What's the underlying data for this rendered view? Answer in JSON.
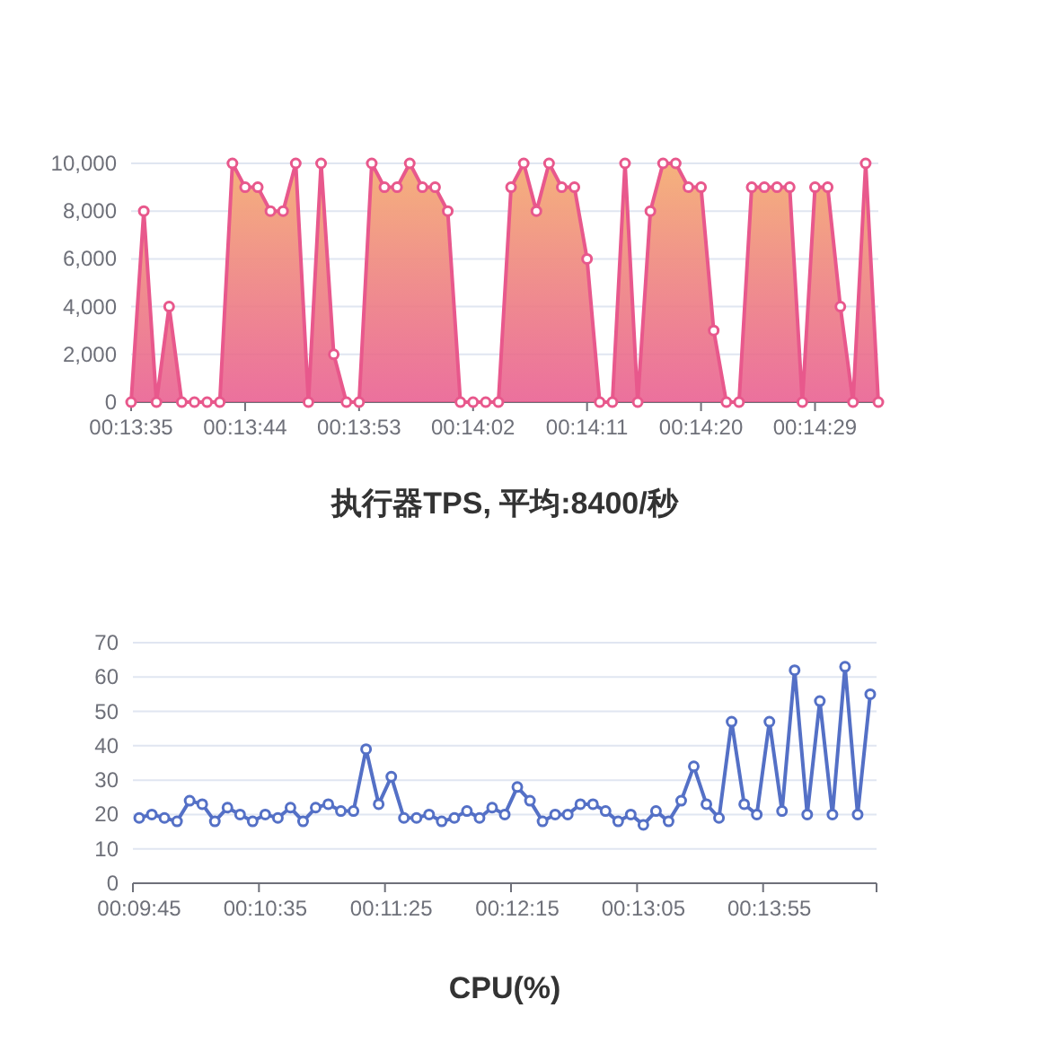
{
  "chart_data": [
    {
      "type": "area",
      "title": "执行器TPS, 平均:8400/秒",
      "categories": [
        "00:13:35",
        null,
        null,
        null,
        null,
        null,
        null,
        null,
        null,
        "00:13:44",
        null,
        null,
        null,
        null,
        null,
        null,
        null,
        null,
        "00:13:53",
        null,
        null,
        null,
        null,
        null,
        null,
        null,
        null,
        "00:14:02",
        null,
        null,
        null,
        null,
        null,
        null,
        null,
        null,
        "00:14:11",
        null,
        null,
        null,
        null,
        null,
        null,
        null,
        null,
        "00:14:20",
        null,
        null,
        null,
        null,
        null,
        null,
        null,
        null,
        "00:14:29",
        null,
        null,
        null,
        null,
        null
      ],
      "series": [
        {
          "color": "#e8588c",
          "values": [
            0,
            8000,
            0,
            4000,
            0,
            0,
            0,
            0,
            10000,
            9000,
            9000,
            8000,
            8000,
            10000,
            0,
            10000,
            2000,
            0,
            0,
            10000,
            9000,
            9000,
            10000,
            9000,
            9000,
            8000,
            0,
            0,
            0,
            0,
            9000,
            10000,
            8000,
            10000,
            9000,
            9000,
            6000,
            0,
            0,
            10000,
            0,
            8000,
            10000,
            10000,
            9000,
            9000,
            3000,
            0,
            0,
            9000,
            9000,
            9000,
            9000,
            0,
            9000,
            9000,
            4000,
            0,
            10000,
            0
          ]
        }
      ],
      "ylim": [
        0,
        10000
      ],
      "yticks": [
        0,
        {
          "value": 2000,
          "label": "2,000"
        },
        {
          "value": 4000,
          "label": "4,000"
        },
        {
          "value": 6000,
          "label": "6,000"
        },
        {
          "value": 8000,
          "label": "8,000"
        },
        {
          "value": 10000,
          "label": "10,000"
        }
      ],
      "grid": "y",
      "marker": "circle"
    },
    {
      "type": "line",
      "title": "CPU(%)",
      "categories": [
        "00:09:45",
        null,
        null,
        null,
        null,
        null,
        null,
        null,
        null,
        null,
        "00:10:35",
        null,
        null,
        null,
        null,
        null,
        null,
        null,
        null,
        null,
        "00:11:25",
        null,
        null,
        null,
        null,
        null,
        null,
        null,
        null,
        null,
        "00:12:15",
        null,
        null,
        null,
        null,
        null,
        null,
        null,
        null,
        null,
        "00:13:05",
        null,
        null,
        null,
        null,
        null,
        null,
        null,
        null,
        null,
        "00:13:55",
        null,
        null,
        null,
        null,
        null,
        null,
        null,
        null
      ],
      "series": [
        {
          "color": "#5470c6",
          "values": [
            19,
            20,
            19,
            18,
            24,
            23,
            18,
            22,
            20,
            18,
            20,
            19,
            22,
            18,
            22,
            23,
            21,
            21,
            39,
            23,
            31,
            19,
            19,
            20,
            18,
            19,
            21,
            19,
            22,
            20,
            28,
            24,
            18,
            20,
            20,
            23,
            23,
            21,
            18,
            20,
            17,
            21,
            18,
            24,
            34,
            23,
            19,
            47,
            23,
            20,
            47,
            21,
            62,
            20,
            53,
            20,
            63,
            20,
            55
          ]
        }
      ],
      "ylim": [
        0,
        70
      ],
      "yticks": [
        0,
        10,
        20,
        30,
        40,
        50,
        60,
        70
      ],
      "grid": "y",
      "marker": "circle"
    }
  ]
}
